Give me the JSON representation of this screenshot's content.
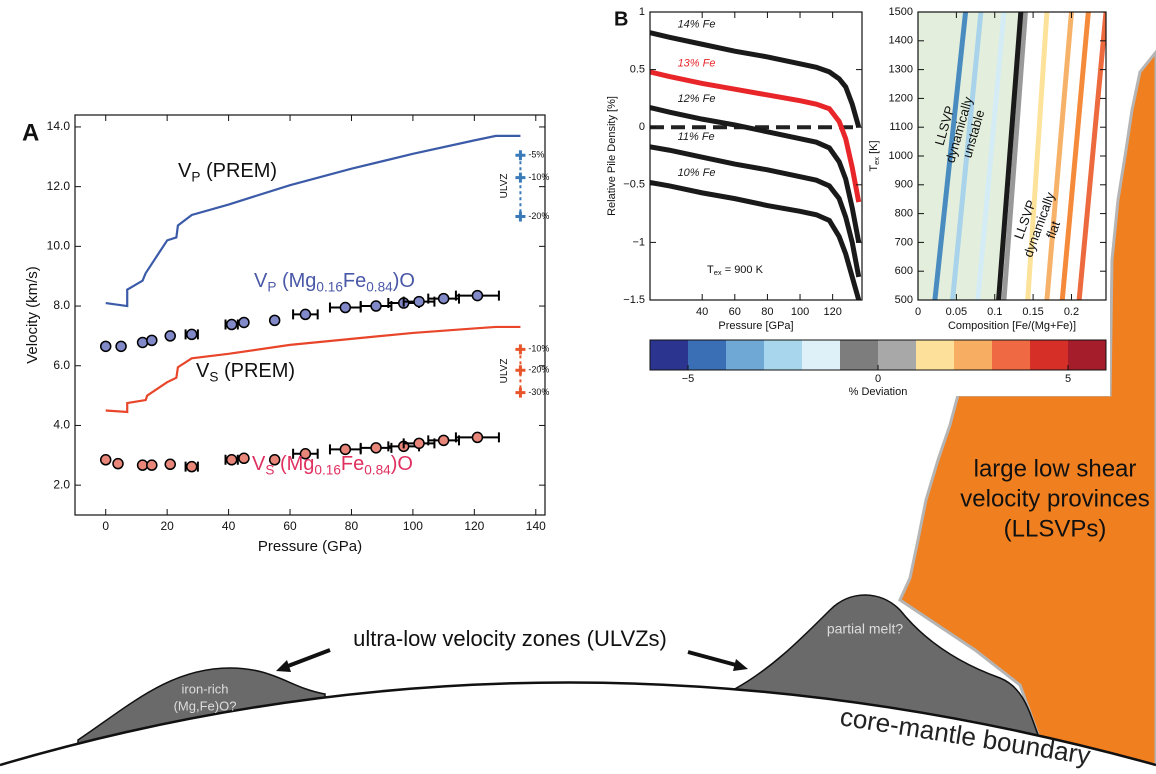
{
  "panel_labels": [
    "A",
    "B"
  ],
  "chart_data": [
    {
      "type": "scatter",
      "xlabel": "Pressure (GPa)",
      "ylabel": "Velocity (km/s)",
      "xlim": [
        -10,
        143
      ],
      "ylim": [
        1,
        14.4
      ],
      "xticks": [
        0,
        20,
        40,
        60,
        80,
        100,
        120,
        140
      ],
      "yticks": [
        {
          "value": 2,
          "label": "2.0"
        },
        {
          "value": 4,
          "label": "4.0"
        },
        {
          "value": 6,
          "label": "6.0"
        },
        {
          "value": 8,
          "label": "8.0"
        },
        {
          "value": 10,
          "label": "10.0"
        },
        {
          "value": 12,
          "label": "12.0"
        },
        {
          "value": 14,
          "label": "14.0"
        }
      ],
      "series": [
        {
          "name": [
            {
              "text": "V"
            },
            {
              "text": "P",
              "sub": true
            },
            {
              "text": " (PREM)"
            }
          ],
          "color": "#3b5ba8",
          "x": [
            0,
            7,
            7,
            12,
            13,
            20,
            23,
            23.5,
            28,
            40,
            60,
            80,
            100,
            120,
            127,
            135
          ],
          "values": [
            8.1,
            8.0,
            8.55,
            8.85,
            9.1,
            10.2,
            10.3,
            10.7,
            11.05,
            11.4,
            12.05,
            12.6,
            13.1,
            13.55,
            13.7,
            13.7
          ]
        },
        {
          "name": [
            {
              "text": "V"
            },
            {
              "text": "S",
              "sub": true
            },
            {
              "text": " (PREM)"
            }
          ],
          "color": "#e8452a",
          "x": [
            0,
            7,
            7,
            13,
            13.5,
            20,
            23,
            23.5,
            28,
            40,
            60,
            80,
            100,
            120,
            127,
            135
          ],
          "values": [
            4.5,
            4.45,
            4.75,
            4.85,
            5.0,
            5.45,
            5.6,
            5.95,
            6.25,
            6.4,
            6.7,
            6.9,
            7.1,
            7.25,
            7.3,
            7.3
          ]
        },
        {
          "name": [
            {
              "text": "V"
            },
            {
              "text": "P",
              "sub": true
            },
            {
              "text": " (Mg"
            },
            {
              "text": "0.16",
              "sub": true
            },
            {
              "text": "Fe"
            },
            {
              "text": "0.84",
              "sub": true
            },
            {
              "text": ")O"
            }
          ],
          "color": "#8189c9",
          "edgecolor": "#000000",
          "marker": "circle",
          "label_color": "#4a58a8",
          "x": [
            0,
            5,
            12,
            15,
            21,
            28,
            41,
            45,
            55,
            65,
            78,
            88,
            97,
            102,
            110,
            121
          ],
          "values": [
            6.65,
            6.65,
            6.78,
            6.85,
            7.0,
            7.05,
            7.38,
            7.45,
            7.52,
            7.72,
            7.95,
            8.0,
            8.1,
            8.15,
            8.25,
            8.35
          ],
          "xerr": [
            null,
            null,
            null,
            null,
            null,
            2,
            2,
            null,
            null,
            4,
            5,
            5,
            5,
            5,
            5,
            7
          ]
        },
        {
          "name": [
            {
              "text": "V"
            },
            {
              "text": "S",
              "sub": true
            },
            {
              "text": " (Mg"
            },
            {
              "text": "0.16",
              "sub": true
            },
            {
              "text": "Fe"
            },
            {
              "text": "0.84",
              "sub": true
            },
            {
              "text": ")O"
            }
          ],
          "color": "#e8867a",
          "edgecolor": "#000000",
          "marker": "circle",
          "label_color": "#e03060",
          "x": [
            0,
            4,
            12,
            15,
            21,
            28,
            41,
            45,
            55,
            65,
            78,
            88,
            97,
            102,
            110,
            121
          ],
          "values": [
            2.85,
            2.72,
            2.67,
            2.67,
            2.7,
            2.62,
            2.85,
            2.9,
            2.85,
            3.05,
            3.2,
            3.25,
            3.3,
            3.4,
            3.5,
            3.6
          ],
          "xerr": [
            null,
            null,
            null,
            null,
            null,
            2,
            2,
            null,
            null,
            4,
            5,
            5,
            5,
            5,
            5,
            7
          ]
        }
      ],
      "ulvz": {
        "label": "ULVZ",
        "groups": [
          {
            "color": "#3a7ab8",
            "x": 135,
            "markers": [
              {
                "value": 13.05,
                "label": "-5%"
              },
              {
                "value": 12.3,
                "label": "-10%"
              },
              {
                "value": 11.0,
                "label": "-20%"
              }
            ]
          },
          {
            "color": "#e8552b",
            "x": 135,
            "markers": [
              {
                "value": 6.55,
                "label": "-10%"
              },
              {
                "value": 5.85,
                "label": "-20%"
              },
              {
                "value": 5.1,
                "label": "-30%"
              }
            ]
          }
        ]
      }
    },
    {
      "type": "line",
      "xlabel": "Pressure  [GPa]",
      "ylabel": "Relative Pile Density  [%]",
      "xlim": [
        8,
        138
      ],
      "ylim": [
        -1.5,
        1
      ],
      "xticks": [
        40,
        60,
        80,
        100,
        120
      ],
      "yticks": [
        1,
        0.5,
        0,
        {
          "value": -0.5,
          "label": "−0.5"
        },
        {
          "value": -1,
          "label": "−1"
        },
        {
          "value": -1.5,
          "label": "−1.5"
        }
      ],
      "x": [
        8,
        20,
        40,
        60,
        80,
        100,
        110,
        118,
        124,
        128,
        132,
        136
      ],
      "series": [
        {
          "name": "14% Fe",
          "color": "#1a1a1a",
          "values": [
            0.82,
            0.78,
            0.72,
            0.66,
            0.61,
            0.55,
            0.52,
            0.48,
            0.42,
            0.35,
            0.2,
            0.0
          ]
        },
        {
          "name": "13% Fe",
          "color": "#e8262a",
          "values": [
            0.48,
            0.44,
            0.38,
            0.33,
            0.28,
            0.23,
            0.2,
            0.16,
            0.05,
            -0.1,
            -0.35,
            -0.65
          ]
        },
        {
          "name": "12% Fe",
          "color": "#1a1a1a",
          "values": [
            0.17,
            0.13,
            0.07,
            0.02,
            -0.04,
            -0.1,
            -0.13,
            -0.18,
            -0.3,
            -0.45,
            -0.7,
            -1.0
          ]
        },
        {
          "name": "11% Fe",
          "color": "#1a1a1a",
          "values": [
            -0.17,
            -0.2,
            -0.26,
            -0.32,
            -0.37,
            -0.43,
            -0.46,
            -0.51,
            -0.62,
            -0.78,
            -1.0,
            -1.3
          ]
        },
        {
          "name": "10% Fe",
          "color": "#1a1a1a",
          "values": [
            -0.48,
            -0.51,
            -0.57,
            -0.62,
            -0.68,
            -0.73,
            -0.76,
            -0.81,
            -0.95,
            -1.1,
            -1.3,
            -1.5
          ]
        }
      ],
      "reference_line": 0,
      "annotations": [
        {
          "parts": [
            {
              "text": "T"
            },
            {
              "text": "ex",
              "sub": true
            },
            {
              "text": " = 900 K"
            }
          ]
        }
      ]
    },
    {
      "type": "line",
      "xlabel": "Composition   [Fe/(Mg+Fe)]",
      "ylabel": [
        {
          "text": "T"
        },
        {
          "text": "ex",
          "sub": true
        },
        {
          "text": "  [K]"
        }
      ],
      "xlim": [
        0,
        0.245
      ],
      "ylim": [
        500,
        1500
      ],
      "xticks": [
        0,
        0.05,
        0.1,
        0.15,
        0.2
      ],
      "yticks": [
        500,
        600,
        700,
        800,
        900,
        1000,
        1100,
        1200,
        1300,
        1400,
        1500
      ],
      "region": {
        "color": "#e3efdc",
        "x": [
          0,
          0.105,
          0.134,
          0
        ],
        "values": [
          500,
          500,
          1500,
          1500
        ]
      },
      "series": [
        {
          "color": "#4a8cc0",
          "x": [
            0.022,
            0.062
          ],
          "values": [
            500,
            1500
          ]
        },
        {
          "color": "#a9d3ea",
          "x": [
            0.045,
            0.082
          ],
          "values": [
            500,
            1500
          ]
        },
        {
          "color": "#d4ecf5",
          "x": [
            0.078,
            0.112
          ],
          "values": [
            500,
            1500
          ]
        },
        {
          "color": "#999999",
          "x": [
            0.112,
            0.14
          ],
          "values": [
            500,
            1500
          ]
        },
        {
          "color": "#1a1a1a",
          "x": [
            0.105,
            0.134
          ],
          "values": [
            500,
            1500
          ]
        },
        {
          "color": "#fde39a",
          "x": [
            0.143,
            0.168
          ],
          "values": [
            500,
            1500
          ]
        },
        {
          "color": "#f7b26a",
          "x": [
            0.168,
            0.2
          ],
          "values": [
            500,
            1500
          ]
        },
        {
          "color": "#f58a3a",
          "x": [
            0.188,
            0.222
          ],
          "values": [
            500,
            1500
          ]
        },
        {
          "color": "#ec6a3e",
          "x": [
            0.21,
            0.245
          ],
          "values": [
            500,
            1500
          ]
        }
      ],
      "annotations": [
        {
          "lines": [
            "LLSVP",
            "dynamically",
            "unstable"
          ]
        },
        {
          "lines": [
            "LLSVP",
            "dynamically",
            "flat"
          ]
        }
      ]
    },
    {
      "type": "colorbar",
      "label": "% Deviation",
      "clim": [
        -6,
        6
      ],
      "colors": [
        "#2b3590",
        "#3a6fb5",
        "#6fa8d4",
        "#a8d6ec",
        "#def1f8",
        "#7d7d7d",
        "#a8a8a8",
        "#fde09a",
        "#f8ae62",
        "#ef6a43",
        "#d62f27",
        "#a51d2a"
      ],
      "ticks": [
        {
          "value": -5,
          "label": "−5"
        },
        0,
        5
      ]
    }
  ],
  "diagram": {
    "llsvp_label": [
      "large low shear",
      "velocity provinces",
      "(LLSVPs)"
    ],
    "ulvz_label": "ultra-low velocity zones (ULVZs)",
    "left_blob_label": [
      "iron-rich",
      "(Mg,Fe)O?"
    ],
    "right_blob_label": "partial melt?",
    "cmb_label": "core-mantle boundary"
  }
}
